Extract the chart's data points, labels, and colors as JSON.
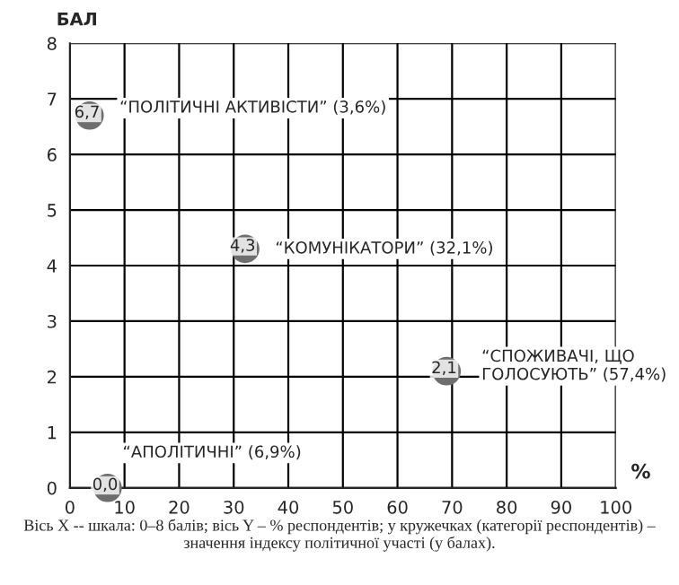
{
  "chart_data": {
    "type": "bubble",
    "xlabel": "%",
    "ylabel": "БАЛ",
    "x": [
      3.6,
      32.1,
      69,
      6.9
    ],
    "values": [
      6.7,
      4.3,
      2.1,
      0.0
    ],
    "sizes": [
      1,
      1,
      1,
      1
    ],
    "color": "#6e6e6e",
    "value_labels": [
      "6,7",
      "4,3",
      "2,1",
      "0,0"
    ],
    "xlim": [
      0,
      100
    ],
    "ylim": [
      0,
      8
    ],
    "xticks": [
      0,
      10,
      20,
      30,
      40,
      50,
      60,
      70,
      80,
      90,
      100
    ],
    "yticks": [
      0,
      1,
      2,
      3,
      4,
      5,
      6,
      7,
      8
    ],
    "grid": true,
    "annotations": [
      {
        "text": "“ПОЛІТИЧНІ АКТИВІСТИ” (3,6%)",
        "x": 3.6,
        "y": 6.7
      },
      {
        "text": "“КОМУНІКАТОРИ” (32,1%)",
        "x": 32.1,
        "y": 4.3
      },
      {
        "text": "“СПОЖИВАЧІ, ЩО\nГОЛОСУЮТЬ” (57,4%)",
        "x": 69,
        "y": 2.1
      },
      {
        "text": "“АПОЛІТИЧНІ” (6,9%)",
        "x": 6.9,
        "y": 0.0
      },
      "Вісь X -- шкала: 0–8 балів; вісь Y – % респондентів; у кружечках (категорії респондентів) – значення індексу політичної участі (у балах)."
    ]
  }
}
